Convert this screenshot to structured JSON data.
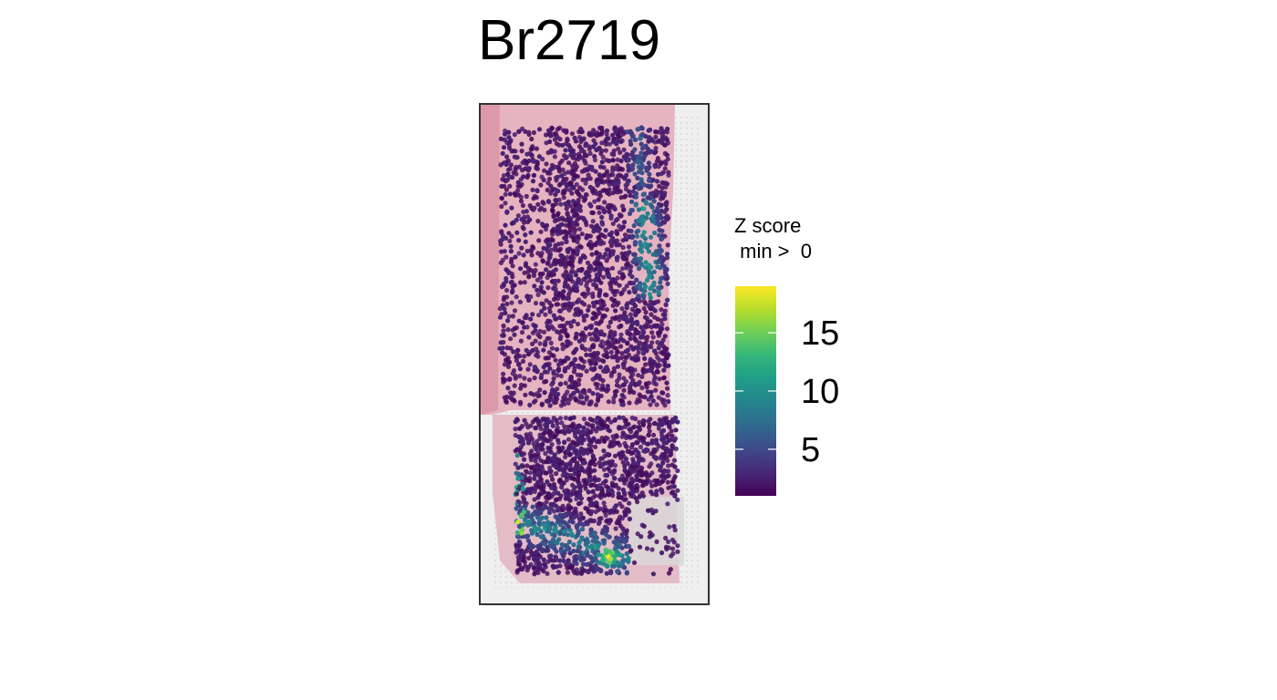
{
  "chart_data": {
    "type": "scatter",
    "title": "Br2719",
    "legend": {
      "title_line1": "Z score",
      "title_line2": " min >  0",
      "ticks": [
        5,
        10,
        15
      ],
      "tick_labels": [
        "5",
        "10",
        "15"
      ],
      "range": [
        1,
        19
      ],
      "colormap": "viridis",
      "placement": "right"
    },
    "grid": false,
    "hotspots": [
      {
        "region": "upper-right band",
        "max_z": 10
      },
      {
        "region": "lower-left band",
        "max_z": 19
      }
    ]
  },
  "colors": {
    "tissue": "#e8b8c4",
    "tissue_edge": "#d98ea0",
    "background_spots": "#d4d4d8",
    "panel_border": "#333333",
    "viridis": [
      "#440154",
      "#482878",
      "#3e4989",
      "#31688e",
      "#26828e",
      "#1f9e89",
      "#35b779",
      "#6ece58",
      "#b5de2b",
      "#fde725"
    ]
  }
}
